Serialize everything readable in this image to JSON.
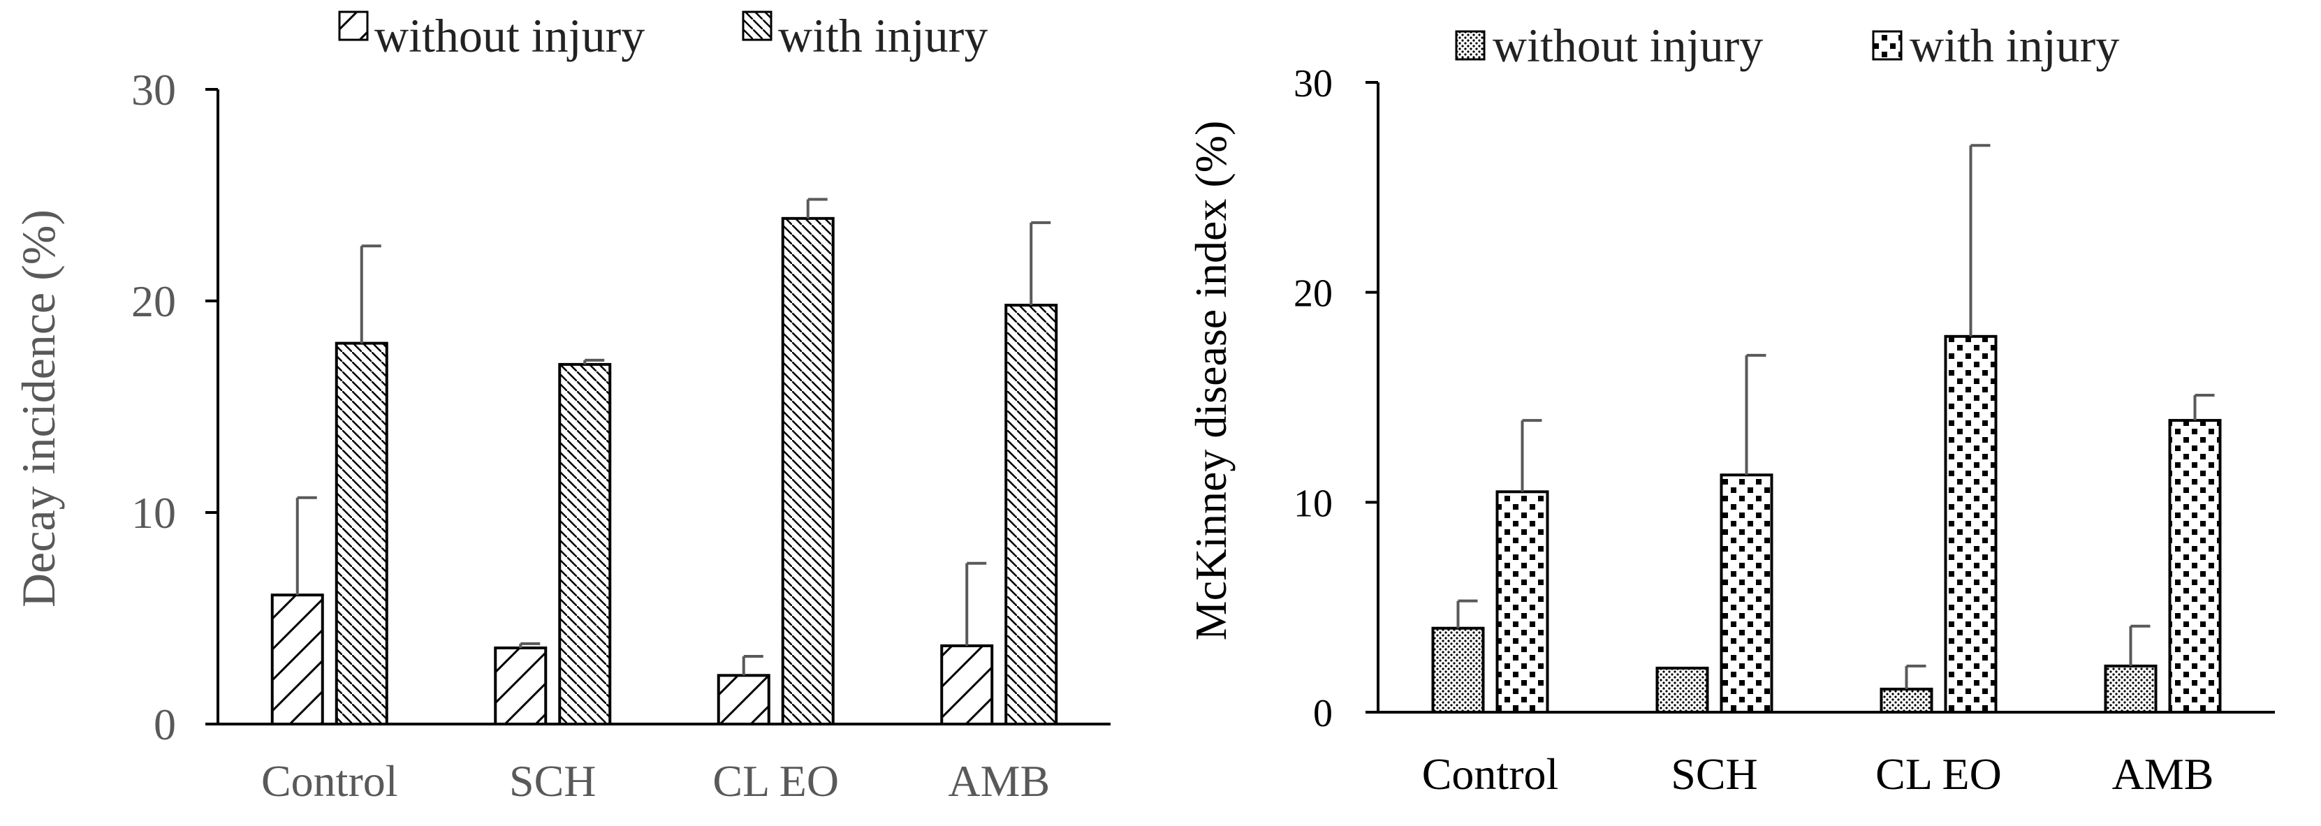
{
  "colors": {
    "axis": "#000000",
    "error_bar": "#595959",
    "bar_fill": "#ffffff",
    "pattern": "#000000"
  },
  "chart_data": [
    {
      "type": "bar",
      "ylabel": "Decay incidence (%)",
      "ylim": [
        0,
        30
      ],
      "yticks": [
        0,
        10,
        20,
        30
      ],
      "categories": [
        "Control",
        "SCH",
        "CL EO",
        "AMB"
      ],
      "legend_position": "top",
      "series": [
        {
          "name": "without injury",
          "pattern": "wide-diagonal-hatch",
          "values": [
            6.1,
            3.6,
            2.3,
            3.7
          ],
          "errors": [
            4.6,
            0.2,
            0.9,
            3.9
          ]
        },
        {
          "name": "with injury",
          "pattern": "dense-diagonal-hatch",
          "values": [
            18.0,
            17.0,
            23.9,
            19.8
          ],
          "errors": [
            4.6,
            0.2,
            0.9,
            3.9
          ]
        }
      ]
    },
    {
      "type": "bar",
      "ylabel": "McKinney disease index (%)",
      "ylim": [
        0,
        30
      ],
      "yticks": [
        0,
        10,
        20,
        30
      ],
      "categories": [
        "Control",
        "SCH",
        "CL EO",
        "AMB"
      ],
      "legend_position": "top",
      "series": [
        {
          "name": "without injury",
          "pattern": "fine-dots",
          "values": [
            4.0,
            2.1,
            1.1,
            2.2
          ],
          "errors": [
            1.3,
            0.0,
            1.1,
            1.9
          ]
        },
        {
          "name": "with injury",
          "pattern": "coarse-squares",
          "values": [
            10.5,
            11.3,
            17.9,
            13.9
          ],
          "errors": [
            3.4,
            5.7,
            9.1,
            1.2
          ]
        }
      ]
    }
  ]
}
